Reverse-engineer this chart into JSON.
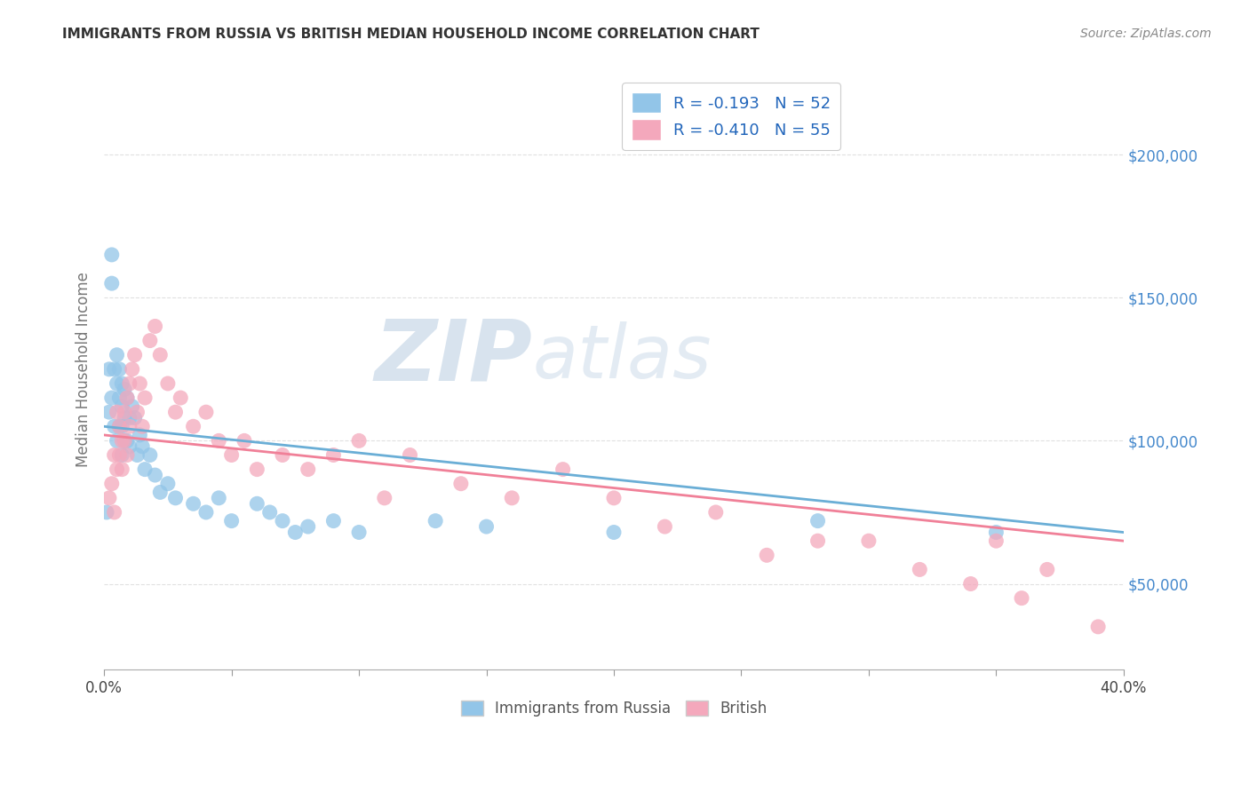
{
  "title": "IMMIGRANTS FROM RUSSIA VS BRITISH MEDIAN HOUSEHOLD INCOME CORRELATION CHART",
  "source": "Source: ZipAtlas.com",
  "ylabel": "Median Household Income",
  "r1": -0.193,
  "n1": 52,
  "r2": -0.41,
  "n2": 55,
  "series1_label": "Immigrants from Russia",
  "series2_label": "British",
  "color1": "#92C5E8",
  "color2": "#F4A8BC",
  "line_color1": "#6AAED6",
  "line_color2": "#F08098",
  "watermark_zip": "ZIP",
  "watermark_atlas": "atlas",
  "xlim": [
    0.0,
    0.4
  ],
  "ylim": [
    20000,
    230000
  ],
  "yticks": [
    50000,
    100000,
    150000,
    200000
  ],
  "ytick_labels": [
    "$50,000",
    "$100,000",
    "$150,000",
    "$200,000"
  ],
  "xticks": [
    0.0,
    0.05,
    0.1,
    0.15,
    0.2,
    0.25,
    0.3,
    0.35,
    0.4
  ],
  "xtick_labels": [
    "0.0%",
    "",
    "",
    "",
    "",
    "",
    "",
    "",
    "40.0%"
  ],
  "background_color": "#FFFFFF",
  "grid_color": "#DDDDDD",
  "series1_x": [
    0.001,
    0.002,
    0.002,
    0.003,
    0.003,
    0.003,
    0.004,
    0.004,
    0.005,
    0.005,
    0.005,
    0.006,
    0.006,
    0.006,
    0.007,
    0.007,
    0.007,
    0.007,
    0.008,
    0.008,
    0.008,
    0.009,
    0.009,
    0.01,
    0.01,
    0.011,
    0.012,
    0.013,
    0.014,
    0.015,
    0.016,
    0.018,
    0.02,
    0.022,
    0.025,
    0.028,
    0.035,
    0.04,
    0.045,
    0.05,
    0.06,
    0.065,
    0.07,
    0.075,
    0.08,
    0.09,
    0.1,
    0.13,
    0.15,
    0.2,
    0.28,
    0.35
  ],
  "series1_y": [
    75000,
    125000,
    110000,
    165000,
    155000,
    115000,
    125000,
    105000,
    130000,
    120000,
    100000,
    125000,
    115000,
    105000,
    120000,
    112000,
    105000,
    95000,
    118000,
    108000,
    100000,
    115000,
    100000,
    108000,
    98000,
    112000,
    108000,
    95000,
    102000,
    98000,
    90000,
    95000,
    88000,
    82000,
    85000,
    80000,
    78000,
    75000,
    80000,
    72000,
    78000,
    75000,
    72000,
    68000,
    70000,
    72000,
    68000,
    72000,
    70000,
    68000,
    72000,
    68000
  ],
  "series2_x": [
    0.002,
    0.003,
    0.004,
    0.004,
    0.005,
    0.005,
    0.006,
    0.006,
    0.007,
    0.007,
    0.008,
    0.008,
    0.009,
    0.009,
    0.01,
    0.01,
    0.011,
    0.012,
    0.013,
    0.014,
    0.015,
    0.016,
    0.018,
    0.02,
    0.022,
    0.025,
    0.028,
    0.03,
    0.035,
    0.04,
    0.045,
    0.05,
    0.055,
    0.06,
    0.07,
    0.08,
    0.09,
    0.1,
    0.11,
    0.12,
    0.14,
    0.16,
    0.18,
    0.2,
    0.22,
    0.24,
    0.26,
    0.28,
    0.3,
    0.32,
    0.34,
    0.35,
    0.36,
    0.37,
    0.39
  ],
  "series2_y": [
    80000,
    85000,
    75000,
    95000,
    110000,
    90000,
    105000,
    95000,
    100000,
    90000,
    110000,
    100000,
    115000,
    95000,
    120000,
    105000,
    125000,
    130000,
    110000,
    120000,
    105000,
    115000,
    135000,
    140000,
    130000,
    120000,
    110000,
    115000,
    105000,
    110000,
    100000,
    95000,
    100000,
    90000,
    95000,
    90000,
    95000,
    100000,
    80000,
    95000,
    85000,
    80000,
    90000,
    80000,
    70000,
    75000,
    60000,
    65000,
    65000,
    55000,
    50000,
    65000,
    45000,
    55000,
    35000
  ]
}
